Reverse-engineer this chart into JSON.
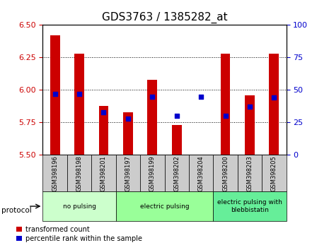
{
  "title": "GDS3763 / 1385282_at",
  "samples": [
    "GSM398196",
    "GSM398198",
    "GSM398201",
    "GSM398197",
    "GSM398199",
    "GSM398202",
    "GSM398204",
    "GSM398200",
    "GSM398203",
    "GSM398205"
  ],
  "transformed_count": [
    6.42,
    6.28,
    5.88,
    5.83,
    6.08,
    5.73,
    5.5,
    6.28,
    5.96,
    6.28
  ],
  "percentile_rank": [
    47,
    47,
    33,
    28,
    45,
    30,
    45,
    30,
    37,
    44
  ],
  "ylim_left": [
    5.5,
    6.5
  ],
  "ylim_right": [
    0,
    100
  ],
  "yticks_left": [
    5.5,
    5.75,
    6.0,
    6.25,
    6.5
  ],
  "yticks_right": [
    0,
    25,
    50,
    75,
    100
  ],
  "groups": [
    {
      "label": "no pulsing",
      "start": 0,
      "end": 3,
      "color": "#ccffcc"
    },
    {
      "label": "electric pulsing",
      "start": 3,
      "end": 7,
      "color": "#99ff99"
    },
    {
      "label": "electric pulsing with\nblebbistatin",
      "start": 7,
      "end": 10,
      "color": "#66ee99"
    }
  ],
  "bar_color": "#cc0000",
  "dot_color": "#0000cc",
  "tick_label_bg": "#cccccc",
  "title_fontsize": 11,
  "axis_label_color_left": "#cc0000",
  "axis_label_color_right": "#0000cc",
  "legend_red_label": "transformed count",
  "legend_blue_label": "percentile rank within the sample"
}
